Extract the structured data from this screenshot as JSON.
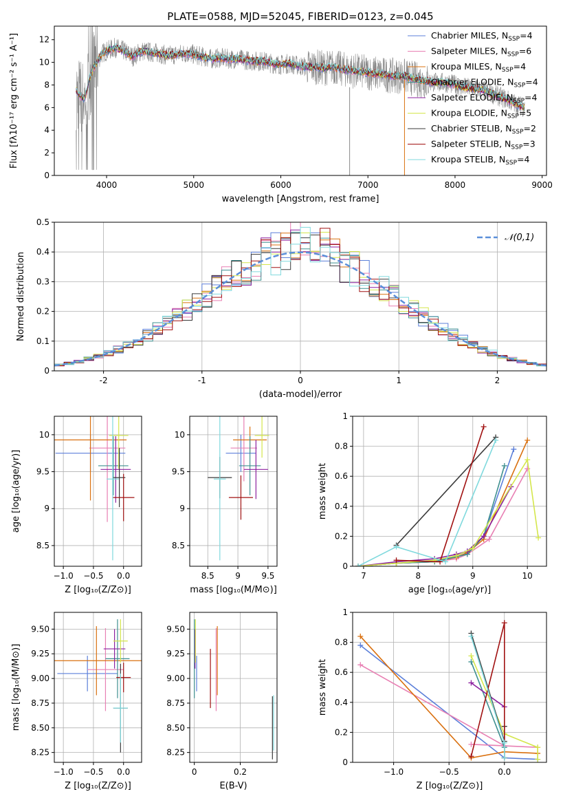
{
  "figure_title": "PLATE=0588, MJD=52045, FIBERID=0123, z=0.045",
  "series_names": [
    "Chabrier MILES, N<sub>SSP</sub>=4",
    "Salpeter MILES, N<sub>SSP</sub>=6",
    "Kroupa MILES, N<sub>SSP</sub>=4",
    "Chabrier ELODIE, N<sub>SSP</sub>=4",
    "Salpeter ELODIE, N<sub>SSP</sub>=4",
    "Kroupa ELODIE, N<sub>SSP</sub>=5",
    "Chabrier STELIB, N<sub>SSP</sub>=2",
    "Salpeter STELIB, N<sub>SSP</sub>=3",
    "Kroupa STELIB, N<sub>SSP</sub>=4"
  ],
  "colors": [
    "#5b7fd9",
    "#e87fb3",
    "#d9700f",
    "#3f9090",
    "#8b1f9f",
    "#d4e64b",
    "#3a3a3a",
    "#a01010",
    "#7fd9dd"
  ],
  "chart_data": [
    {
      "id": "spectrum",
      "type": "line",
      "title": "PLATE=0588, MJD=52045, FIBERID=0123, z=0.045",
      "xlabel": "wavelength [Angstrom, rest frame]",
      "ylabel": "Flux [fλ10⁻¹⁷ erg cm⁻² s⁻¹ A⁻¹]",
      "xlim": [
        3400,
        9050
      ],
      "ylim": [
        0,
        13.2
      ],
      "xticks": [
        4000,
        5000,
        6000,
        7000,
        8000,
        9000
      ],
      "yticks": [
        0,
        2,
        4,
        6,
        8,
        10,
        12
      ],
      "grid": false,
      "legend": "top-right",
      "data_color": "#888888",
      "model_x": [
        3650,
        3700,
        3750,
        3800,
        3850,
        3900,
        3950,
        4000,
        4100,
        4200,
        4300,
        4400,
        4500,
        4600,
        4700,
        4800,
        4900,
        5000,
        5100,
        5200,
        5300,
        5400,
        5500,
        5600,
        5700,
        5800,
        5900,
        6000,
        6100,
        6200,
        6300,
        6400,
        6500,
        6600,
        6700,
        6800,
        6900,
        7000,
        7100,
        7200,
        7300,
        7400,
        7500,
        7600,
        7700,
        7800,
        7900,
        8000,
        8100,
        8200,
        8300,
        8400,
        8500,
        8600,
        8700,
        8800
      ],
      "model_y": [
        7.5,
        7.0,
        6.8,
        8.5,
        9.5,
        10.2,
        10.8,
        11.0,
        11.3,
        11.0,
        10.5,
        11.0,
        10.9,
        10.8,
        10.6,
        10.7,
        10.8,
        10.7,
        10.5,
        10.3,
        10.4,
        10.3,
        10.3,
        10.2,
        10.1,
        10.1,
        9.9,
        9.8,
        9.9,
        9.7,
        9.6,
        9.6,
        9.5,
        9.6,
        9.4,
        9.3,
        9.2,
        9.1,
        9.0,
        8.9,
        8.8,
        8.8,
        8.6,
        8.4,
        8.3,
        8.2,
        8.2,
        8.0,
        7.8,
        7.7,
        7.6,
        7.3,
        7.0,
        6.7,
        6.3,
        6.0
      ]
    },
    {
      "id": "residuals",
      "type": "line",
      "xlabel": "(data-model)/error",
      "ylabel": "Normed distribution",
      "xlim": [
        -2.5,
        2.5
      ],
      "ylim": [
        0,
        0.5
      ],
      "xticks": [
        -2,
        -1,
        0,
        1,
        2
      ],
      "yticks": [
        0.0,
        0.1,
        0.2,
        0.3,
        0.4,
        0.5
      ],
      "grid": true,
      "legend": "top-right",
      "gaussian_label": "𝒩(0,1)",
      "gaussian_color": "#5b8fd9",
      "bin_width": 0.1,
      "hist_edges": [
        -2.5,
        2.5
      ]
    },
    {
      "id": "age_vs_Z",
      "type": "scatter",
      "xlabel": "Z [log₁₀(Z/Z⊙)]",
      "ylabel": "age [log₁₀(age/yr)]",
      "xlim": [
        -1.15,
        0.3
      ],
      "ylim": [
        8.22,
        10.25
      ],
      "xticks": [
        -1.0,
        -0.5,
        0.0
      ],
      "xtick_labels": [
        "−1.0",
        "−0.5",
        "0.0"
      ],
      "yticks": [
        8.5,
        9.0,
        9.5,
        10.0
      ],
      "grid": true,
      "points": [
        {
          "x": -0.55,
          "y": 9.75,
          "xerr": 0.58,
          "yerr": 0.25,
          "s": 0
        },
        {
          "x": -0.27,
          "y": 9.82,
          "xerr": 0.3,
          "yerr": 1.0,
          "s": 1
        },
        {
          "x": -0.55,
          "y": 9.93,
          "xerr": 0.6,
          "yerr": 0.82,
          "s": 2
        },
        {
          "x": -0.17,
          "y": 9.58,
          "xerr": 0.25,
          "yerr": 0.4,
          "s": 3
        },
        {
          "x": -0.13,
          "y": 9.53,
          "xerr": 0.25,
          "yerr": 0.45,
          "s": 4
        },
        {
          "x": -0.08,
          "y": 9.99,
          "xerr": 0.16,
          "yerr": 0.45,
          "s": 5
        },
        {
          "x": -0.07,
          "y": 9.42,
          "xerr": 0.1,
          "yerr": 0.4,
          "s": 6
        },
        {
          "x": 0.0,
          "y": 9.15,
          "xerr": 0.18,
          "yerr": 0.32,
          "s": 7
        },
        {
          "x": -0.18,
          "y": 9.4,
          "xerr": 0.1,
          "yerr": 1.1,
          "s": 8
        }
      ]
    },
    {
      "id": "age_vs_mass",
      "type": "scatter",
      "xlabel": "mass [log₁₀(M/M⊙)]",
      "ylabel": "",
      "xlim": [
        8.2,
        9.65
      ],
      "ylim": [
        8.22,
        10.25
      ],
      "xticks": [
        8.5,
        9.0,
        9.5
      ],
      "yticks": [
        8.5,
        9.0,
        9.5,
        10.0
      ],
      "grid": true,
      "points": [
        {
          "x": 9.05,
          "y": 9.75,
          "xerr": 0.25,
          "yerr": 0.25,
          "s": 0
        },
        {
          "x": 9.1,
          "y": 9.82,
          "xerr": 0.22,
          "yerr": 0.45,
          "s": 1
        },
        {
          "x": 9.2,
          "y": 9.93,
          "xerr": 0.28,
          "yerr": 0.18,
          "s": 2
        },
        {
          "x": 9.2,
          "y": 9.58,
          "xerr": 0.18,
          "yerr": 0.4,
          "s": 3
        },
        {
          "x": 9.3,
          "y": 9.53,
          "xerr": 0.2,
          "yerr": 0.4,
          "s": 4
        },
        {
          "x": 9.4,
          "y": 9.99,
          "xerr": 0.12,
          "yerr": 0.3,
          "s": 5
        },
        {
          "x": 8.7,
          "y": 9.42,
          "xerr": 0.2,
          "yerr": 0.28,
          "s": 6
        },
        {
          "x": 9.05,
          "y": 9.15,
          "xerr": 0.2,
          "yerr": 0.3,
          "s": 7
        },
        {
          "x": 8.7,
          "y": 9.4,
          "xerr": 0.1,
          "yerr": 1.1,
          "s": 8
        }
      ]
    },
    {
      "id": "weight_vs_age",
      "type": "line",
      "xlabel": "age  [log₁₀(age/yr)]",
      "ylabel": "mass weight",
      "xlim": [
        6.8,
        10.35
      ],
      "ylim": [
        0,
        1.0
      ],
      "xticks": [
        7,
        8,
        9,
        10
      ],
      "yticks": [
        0.0,
        0.2,
        0.4,
        0.6,
        0.8,
        1.0
      ],
      "grid": true,
      "series": [
        {
          "s": 0,
          "x": [
            6.9,
            7.6,
            8.3,
            8.7,
            8.9,
            9.2,
            9.75
          ],
          "y": [
            0.0,
            0.02,
            0.03,
            0.07,
            0.1,
            0.2,
            0.78
          ]
        },
        {
          "s": 1,
          "x": [
            6.9,
            7.6,
            8.3,
            8.7,
            8.9,
            9.3,
            10.0
          ],
          "y": [
            0.0,
            0.02,
            0.03,
            0.05,
            0.08,
            0.18,
            0.65
          ]
        },
        {
          "s": 2,
          "x": [
            6.9,
            7.6,
            8.3,
            8.7,
            8.9,
            9.2,
            10.0
          ],
          "y": [
            0.0,
            0.02,
            0.03,
            0.06,
            0.09,
            0.18,
            0.84
          ]
        },
        {
          "s": 3,
          "x": [
            6.9,
            7.6,
            8.3,
            8.9,
            9.2,
            9.58
          ],
          "y": [
            0.0,
            0.02,
            0.03,
            0.08,
            0.2,
            0.67
          ]
        },
        {
          "s": 4,
          "x": [
            6.9,
            7.6,
            8.3,
            8.7,
            8.9,
            9.2,
            9.7
          ],
          "y": [
            0.0,
            0.03,
            0.05,
            0.08,
            0.1,
            0.2,
            0.53
          ]
        },
        {
          "s": 5,
          "x": [
            6.9,
            7.6,
            8.3,
            8.7,
            9.0,
            10.0,
            10.2
          ],
          "y": [
            0.0,
            0.02,
            0.04,
            0.07,
            0.12,
            0.71,
            0.19
          ]
        },
        {
          "s": 6,
          "x": [
            7.6,
            9.42
          ],
          "y": [
            0.14,
            0.86
          ]
        },
        {
          "s": 7,
          "x": [
            7.6,
            8.4,
            9.2
          ],
          "y": [
            0.04,
            0.03,
            0.93
          ]
        },
        {
          "s": 8,
          "x": [
            6.9,
            7.6,
            8.5,
            9.42
          ],
          "y": [
            0.0,
            0.13,
            0.03,
            0.84
          ]
        }
      ]
    },
    {
      "id": "mass_vs_Z",
      "type": "scatter",
      "xlabel": "Z [log₁₀(Z/Z⊙)]",
      "ylabel": "mass [log₁₀(M/M⊙)]",
      "xlim": [
        -1.15,
        0.3
      ],
      "ylim": [
        8.15,
        9.67
      ],
      "xticks": [
        -1.0,
        -0.5,
        0.0
      ],
      "xtick_labels": [
        "−1.0",
        "−0.5",
        "0.0"
      ],
      "yticks": [
        8.25,
        8.5,
        8.75,
        9.0,
        9.25,
        9.5
      ],
      "ytick_labels": [
        "8.25",
        "8.50",
        "8.75",
        "9.00",
        "9.25",
        "9.50"
      ],
      "grid": true,
      "points": [
        {
          "x": -0.6,
          "y": 9.05,
          "xerr": 0.5,
          "yerr": 0.18,
          "s": 0
        },
        {
          "x": -0.3,
          "y": 9.09,
          "xerr": 0.3,
          "yerr": 0.42,
          "s": 1
        },
        {
          "x": -0.45,
          "y": 9.18,
          "xerr": 0.75,
          "yerr": 0.35,
          "s": 2
        },
        {
          "x": -0.1,
          "y": 9.2,
          "xerr": 0.2,
          "yerr": 0.4,
          "s": 3
        },
        {
          "x": -0.15,
          "y": 9.3,
          "xerr": 0.18,
          "yerr": 0.2,
          "s": 4
        },
        {
          "x": -0.05,
          "y": 9.38,
          "xerr": 0.12,
          "yerr": 0.22,
          "s": 5
        },
        {
          "x": -0.05,
          "y": 8.7,
          "xerr": 0.12,
          "yerr": 0.45,
          "s": 6
        },
        {
          "x": 0.0,
          "y": 9.01,
          "xerr": 0.12,
          "yerr": 0.15,
          "s": 7
        },
        {
          "x": -0.05,
          "y": 8.7,
          "xerr": 0.12,
          "yerr": 0.35,
          "s": 8
        }
      ]
    },
    {
      "id": "mass_vs_ebv",
      "type": "scatter",
      "xlabel": "E(B-V)",
      "ylabel": "",
      "xlim": [
        -0.02,
        0.36
      ],
      "ylim": [
        8.15,
        9.67
      ],
      "xticks": [
        0.0,
        0.2
      ],
      "yticks": [
        8.25,
        8.5,
        8.75,
        9.0,
        9.25,
        9.5
      ],
      "ytick_labels": [
        "8.25",
        "8.50",
        "8.75",
        "9.00",
        "9.25",
        "9.50"
      ],
      "grid": true,
      "points": [
        {
          "x": 0.01,
          "y": 9.05,
          "xerr": 0,
          "yerr": 0.18,
          "s": 0
        },
        {
          "x": 0.095,
          "y": 9.09,
          "xerr": 0,
          "yerr": 0.42,
          "s": 1
        },
        {
          "x": 0.1,
          "y": 9.18,
          "xerr": 0,
          "yerr": 0.35,
          "s": 2
        },
        {
          "x": 0.0,
          "y": 9.2,
          "xerr": 0,
          "yerr": 0.4,
          "s": 3
        },
        {
          "x": 0.003,
          "y": 9.3,
          "xerr": 0,
          "yerr": 0.2,
          "s": 4
        },
        {
          "x": 0.005,
          "y": 9.38,
          "xerr": 0,
          "yerr": 0.22,
          "s": 5
        },
        {
          "x": 0.34,
          "y": 8.5,
          "xerr": 0,
          "yerr": 0.32,
          "s": 6
        },
        {
          "x": 0.07,
          "y": 9.0,
          "xerr": 0,
          "yerr": 0.3,
          "s": 7
        },
        {
          "x": 0.345,
          "y": 8.55,
          "xerr": 0,
          "yerr": 0.28,
          "s": 8
        }
      ]
    },
    {
      "id": "weight_vs_Z",
      "type": "line",
      "xlabel": "Z [log₁₀(Z/Z⊙)]",
      "ylabel": "mass weight",
      "xlim": [
        -1.37,
        0.38
      ],
      "ylim": [
        0,
        1.0
      ],
      "xticks": [
        -1.0,
        -0.5,
        0.0
      ],
      "xtick_labels": [
        "−1.0",
        "−0.5",
        "0.0"
      ],
      "yticks": [
        0.0,
        0.2,
        0.4,
        0.6,
        0.8,
        1.0
      ],
      "grid": true,
      "series": [
        {
          "s": 0,
          "x": [
            -1.3,
            0.0,
            0.3
          ],
          "y": [
            0.78,
            0.03,
            0.02
          ]
        },
        {
          "s": 1,
          "x": [
            -1.3,
            0.0,
            0.3,
            -0.3
          ],
          "y": [
            0.65,
            0.11,
            0.1,
            0.12
          ]
        },
        {
          "s": 2,
          "x": [
            -1.3,
            -0.3,
            0.0,
            0.3
          ],
          "y": [
            0.84,
            0.03,
            0.07,
            0.06
          ]
        },
        {
          "s": 3,
          "x": [
            -0.3,
            0.0,
            0.0
          ],
          "y": [
            0.67,
            0.1,
            0.03
          ]
        },
        {
          "s": 4,
          "x": [
            -0.3,
            0.0
          ],
          "y": [
            0.53,
            0.37
          ]
        },
        {
          "s": 5,
          "x": [
            -0.3,
            0.0,
            0.3,
            0.3
          ],
          "y": [
            0.71,
            0.19,
            0.1,
            0.02
          ]
        },
        {
          "s": 6,
          "x": [
            -0.3,
            0.0,
            0.0
          ],
          "y": [
            0.86,
            0.14,
            0.24
          ]
        },
        {
          "s": 7,
          "x": [
            -0.3,
            0.0,
            0.0
          ],
          "y": [
            0.04,
            0.93,
            0.03
          ]
        },
        {
          "s": 8,
          "x": [
            -0.3,
            0.0,
            0.0
          ],
          "y": [
            0.84,
            0.13,
            0.03
          ]
        }
      ]
    }
  ]
}
